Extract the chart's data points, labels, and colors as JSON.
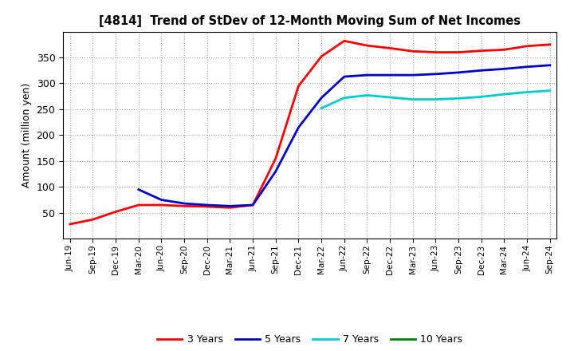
{
  "title": "[4814]  Trend of StDev of 12-Month Moving Sum of Net Incomes",
  "ylabel": "Amount (million yen)",
  "background_color": "#ffffff",
  "grid_color": "#999999",
  "series": {
    "3 Years": {
      "color": "#ff0000",
      "points": [
        [
          "Jun-19",
          28
        ],
        [
          "Sep-19",
          37
        ],
        [
          "Dec-19",
          52
        ],
        [
          "Mar-20",
          65
        ],
        [
          "Jun-20",
          65
        ],
        [
          "Sep-20",
          63
        ],
        [
          "Dec-20",
          62
        ],
        [
          "Mar-21",
          60
        ],
        [
          "Jun-21",
          65
        ],
        [
          "Sep-21",
          155
        ],
        [
          "Dec-21",
          295
        ],
        [
          "Mar-22",
          352
        ],
        [
          "Jun-22",
          382
        ],
        [
          "Sep-22",
          373
        ],
        [
          "Dec-22",
          368
        ],
        [
          "Mar-23",
          362
        ],
        [
          "Jun-23",
          360
        ],
        [
          "Sep-23",
          360
        ],
        [
          "Dec-23",
          363
        ],
        [
          "Mar-24",
          365
        ],
        [
          "Jun-24",
          372
        ],
        [
          "Sep-24",
          375
        ]
      ]
    },
    "5 Years": {
      "color": "#0000cc",
      "points": [
        [
          "Mar-20",
          95
        ],
        [
          "Jun-20",
          75
        ],
        [
          "Sep-20",
          68
        ],
        [
          "Dec-20",
          65
        ],
        [
          "Mar-21",
          63
        ],
        [
          "Jun-21",
          65
        ],
        [
          "Sep-21",
          130
        ],
        [
          "Dec-21",
          215
        ],
        [
          "Mar-22",
          272
        ],
        [
          "Jun-22",
          313
        ],
        [
          "Sep-22",
          316
        ],
        [
          "Dec-22",
          316
        ],
        [
          "Mar-23",
          316
        ],
        [
          "Jun-23",
          318
        ],
        [
          "Sep-23",
          321
        ],
        [
          "Dec-23",
          325
        ],
        [
          "Mar-24",
          328
        ],
        [
          "Jun-24",
          332
        ],
        [
          "Sep-24",
          335
        ]
      ]
    },
    "7 Years": {
      "color": "#00cccc",
      "points": [
        [
          "Mar-22",
          252
        ],
        [
          "Jun-22",
          272
        ],
        [
          "Sep-22",
          277
        ],
        [
          "Dec-22",
          273
        ],
        [
          "Mar-23",
          269
        ],
        [
          "Jun-23",
          269
        ],
        [
          "Sep-23",
          271
        ],
        [
          "Dec-23",
          274
        ],
        [
          "Mar-24",
          279
        ],
        [
          "Jun-24",
          283
        ],
        [
          "Sep-24",
          286
        ]
      ]
    },
    "10 Years": {
      "color": "#008000",
      "points": []
    }
  },
  "xtick_labels": [
    "Jun-19",
    "Sep-19",
    "Dec-19",
    "Mar-20",
    "Jun-20",
    "Sep-20",
    "Dec-20",
    "Mar-21",
    "Jun-21",
    "Sep-21",
    "Dec-21",
    "Mar-22",
    "Jun-22",
    "Sep-22",
    "Dec-22",
    "Mar-23",
    "Jun-23",
    "Sep-23",
    "Dec-23",
    "Mar-24",
    "Jun-24",
    "Sep-24"
  ],
  "ylim": [
    0,
    400
  ],
  "yticks": [
    50,
    100,
    150,
    200,
    250,
    300,
    350
  ]
}
